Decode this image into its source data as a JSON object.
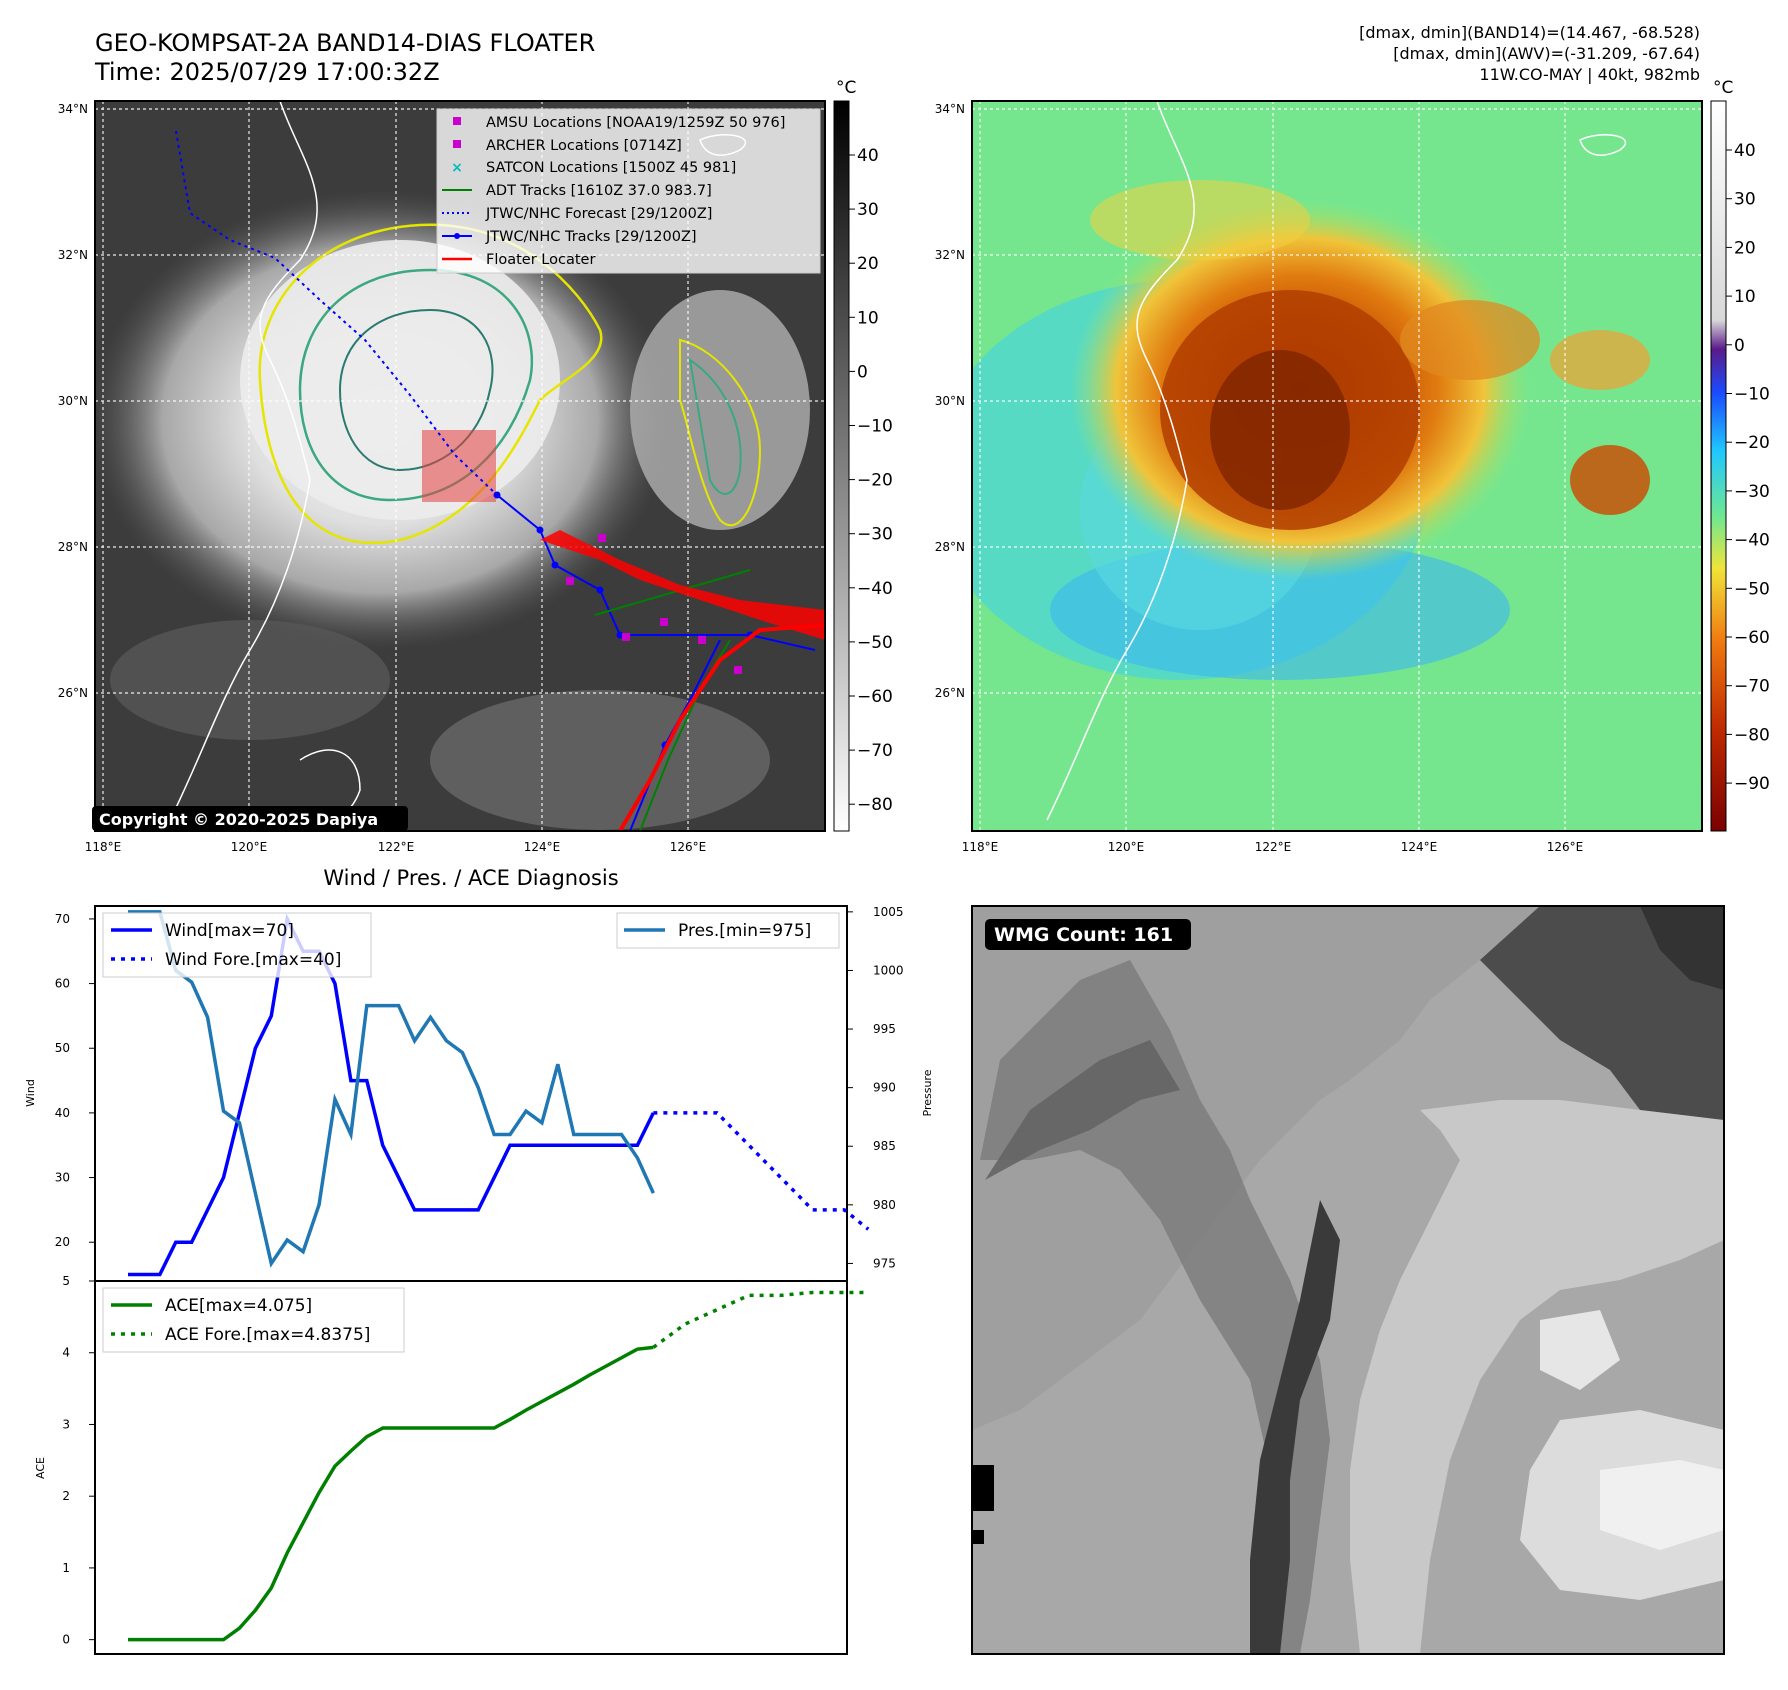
{
  "header": {
    "title_line1": "GEO-KOMPSAT-2A BAND14-DIAS FLOATER",
    "title_line2": "Time: 2025/07/29 17:00:32Z",
    "info_line1": "[dmax, dmin](BAND14)=(14.467, -68.528)",
    "info_line2": "[dmax, dmin](AWV)=(-31.209, -67.64)",
    "info_line3": "11W.CO-MAY | 40kt, 982mb"
  },
  "maps": {
    "lat_labels": [
      "34°N",
      "32°N",
      "30°N",
      "28°N",
      "26°N"
    ],
    "lon_labels": [
      "118°E",
      "120°E",
      "122°E",
      "124°E",
      "126°E"
    ],
    "copyright": "Copyright © 2020-2025 Dapiya",
    "colorbar_unit": "°C",
    "left_colorbar_ticks": [
      "40",
      "30",
      "20",
      "10",
      "0",
      "−10",
      "−20",
      "−30",
      "−40",
      "−50",
      "−60",
      "−70",
      "−80"
    ],
    "right_colorbar_ticks": [
      "40",
      "30",
      "20",
      "10",
      "0",
      "−10",
      "−20",
      "−30",
      "−40",
      "−50",
      "−60",
      "−70",
      "−80",
      "−90"
    ],
    "legend": [
      {
        "label": "AMSU Locations [NOAA19/1259Z 50 976]",
        "color": "#cc00cc",
        "marker": "square"
      },
      {
        "label": "ARCHER Locations [0714Z]",
        "color": "#cc00cc",
        "marker": "square"
      },
      {
        "label": "SATCON Locations [1500Z 45 981]",
        "color": "#00bcbc",
        "marker": "x"
      },
      {
        "label": "ADT Tracks [1610Z 37.0 983.7]",
        "color": "#008000",
        "marker": "line"
      },
      {
        "label": "JTWC/NHC Forecast [29/1200Z]",
        "color": "#0000ff",
        "marker": "dotted"
      },
      {
        "label": "JTWC/NHC Tracks [29/1200Z]",
        "color": "#0000ff",
        "marker": "line-dot"
      },
      {
        "label": "Floater Locater",
        "color": "#ff0000",
        "marker": "line"
      }
    ]
  },
  "diagnosis": {
    "title": "Wind / Pres. / ACE Diagnosis",
    "wind_ylabel": "Wind",
    "pres_ylabel": "Pressure",
    "ace_ylabel": "ACE",
    "legend_wind": "Wind[max=70]",
    "legend_wind_fore": "Wind Fore.[max=40]",
    "legend_pres": "Pres.[min=975]",
    "legend_ace": "ACE[max=4.075]",
    "legend_ace_fore": "ACE Fore.[max=4.8375]"
  },
  "wmg": {
    "label": "WMG Count: 161"
  },
  "chart_data": [
    {
      "type": "line",
      "title": "Wind / Pres. / ACE Diagnosis",
      "ylabel": "Wind",
      "ylim": [
        14,
        72
      ],
      "y2label": "Pressure",
      "y2lim": [
        973.5,
        1005.5
      ],
      "series": [
        {
          "name": "Wind[max=70]",
          "axis": "left",
          "color": "#0000ff",
          "style": "solid",
          "x": [
            0,
            1,
            2,
            3,
            4,
            5,
            6,
            7,
            8,
            9,
            10,
            11,
            12,
            13,
            14,
            15,
            16,
            17,
            18,
            19,
            20,
            21,
            22,
            23,
            24,
            25,
            26,
            27,
            28,
            29,
            30,
            31,
            32,
            33
          ],
          "y": [
            15,
            15,
            15,
            20,
            20,
            25,
            30,
            40,
            50,
            55,
            70,
            65,
            65,
            60,
            45,
            45,
            35,
            30,
            25,
            25,
            25,
            25,
            25,
            30,
            35,
            35,
            35,
            35,
            35,
            35,
            35,
            35,
            35,
            40
          ]
        },
        {
          "name": "Wind Fore.[max=40]",
          "axis": "left",
          "color": "#0000ff",
          "style": "dotted",
          "x": [
            33,
            35,
            37,
            39,
            41,
            43,
            45,
            46.5
          ],
          "y": [
            40,
            40,
            40,
            35,
            30,
            25,
            25,
            22
          ]
        },
        {
          "name": "Pres.[min=975]",
          "axis": "right",
          "color": "#1f77b4",
          "style": "solid",
          "x": [
            0,
            1,
            2,
            3,
            4,
            5,
            6,
            7,
            8,
            9,
            10,
            11,
            12,
            13,
            14,
            15,
            16,
            17,
            18,
            19,
            20,
            21,
            22,
            23,
            24,
            25,
            26,
            27,
            28,
            29,
            30,
            31,
            32,
            33
          ],
          "y": [
            1005,
            1005,
            1005,
            1000,
            999,
            996,
            988,
            987,
            981,
            975,
            977,
            976,
            980,
            989,
            986,
            997,
            997,
            997,
            994,
            996,
            994,
            993,
            990,
            986,
            986,
            988,
            987,
            992,
            986,
            986,
            986,
            986,
            984,
            981
          ]
        }
      ]
    },
    {
      "type": "line",
      "ylabel": "ACE",
      "ylim": [
        -0.2,
        5.0
      ],
      "series": [
        {
          "name": "ACE[max=4.075]",
          "color": "#008000",
          "style": "solid",
          "x": [
            0,
            1,
            2,
            3,
            4,
            5,
            6,
            7,
            8,
            9,
            10,
            11,
            12,
            13,
            14,
            15,
            16,
            17,
            18,
            19,
            20,
            21,
            22,
            23,
            24,
            25,
            26,
            27,
            28,
            29,
            30,
            31,
            32,
            33
          ],
          "y": [
            0,
            0,
            0,
            0,
            0,
            0,
            0,
            0.16,
            0.41,
            0.72,
            1.21,
            1.63,
            2.05,
            2.42,
            2.63,
            2.83,
            2.95,
            2.95,
            2.95,
            2.95,
            2.95,
            2.95,
            2.95,
            2.95,
            3.07,
            3.2,
            3.32,
            3.44,
            3.56,
            3.69,
            3.81,
            3.93,
            4.05,
            4.075
          ]
        },
        {
          "name": "ACE Fore.[max=4.8375]",
          "color": "#008000",
          "style": "dotted",
          "x": [
            33,
            35,
            37,
            39,
            41,
            43,
            45,
            46.5
          ],
          "y": [
            4.075,
            4.4,
            4.6,
            4.8,
            4.8,
            4.84,
            4.84,
            4.84
          ]
        }
      ]
    }
  ]
}
